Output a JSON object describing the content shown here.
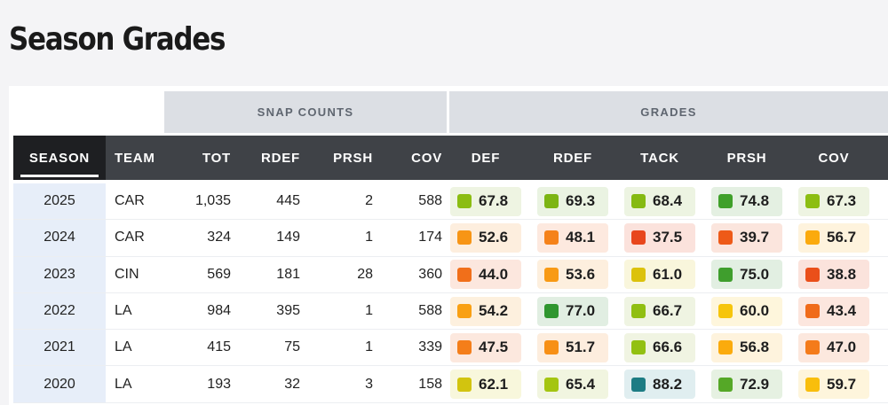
{
  "title": "Season Grades",
  "groups": {
    "snap_counts": "SNAP COUNTS",
    "grades": "GRADES"
  },
  "columns": {
    "season": "SEASON",
    "team": "TEAM",
    "tot": "TOT",
    "rdef": "RDEF",
    "prsh": "PRSH",
    "cov": "COV",
    "g_def": "DEF",
    "g_rdef": "RDEF",
    "g_tack": "TACK",
    "g_prsh": "PRSH",
    "g_cov": "COV"
  },
  "rows": [
    {
      "season": "2025",
      "team": "CAR",
      "tot": "1,035",
      "rdef": "445",
      "prsh": "2",
      "cov": "588",
      "grades": [
        {
          "value": "67.8",
          "color": "#8bbd12",
          "bg": "#eef4e2"
        },
        {
          "value": "69.3",
          "color": "#7cb514",
          "bg": "#eaf3e2"
        },
        {
          "value": "68.4",
          "color": "#85ba12",
          "bg": "#edf4e2"
        },
        {
          "value": "74.8",
          "color": "#3fa02a",
          "bg": "#e4f0e2"
        },
        {
          "value": "67.3",
          "color": "#8cbe12",
          "bg": "#eef4e2"
        }
      ]
    },
    {
      "season": "2024",
      "team": "CAR",
      "tot": "324",
      "rdef": "149",
      "prsh": "1",
      "cov": "174",
      "grades": [
        {
          "value": "52.6",
          "color": "#f79515",
          "bg": "#fdeede"
        },
        {
          "value": "48.1",
          "color": "#f5821a",
          "bg": "#fde9df"
        },
        {
          "value": "37.5",
          "color": "#e8461c",
          "bg": "#fbe2dc"
        },
        {
          "value": "39.7",
          "color": "#ee5a18",
          "bg": "#fbe5dd"
        },
        {
          "value": "56.7",
          "color": "#fbaa0d",
          "bg": "#fef3dd"
        }
      ]
    },
    {
      "season": "2023",
      "team": "CIN",
      "tot": "569",
      "rdef": "181",
      "prsh": "28",
      "cov": "360",
      "grades": [
        {
          "value": "44.0",
          "color": "#f16f1a",
          "bg": "#fce7de"
        },
        {
          "value": "53.6",
          "color": "#f89a14",
          "bg": "#fdefde"
        },
        {
          "value": "61.0",
          "color": "#dcc20c",
          "bg": "#f9f6dc"
        },
        {
          "value": "75.0",
          "color": "#3f9e2d",
          "bg": "#e2efe2"
        },
        {
          "value": "38.8",
          "color": "#ea4f1a",
          "bg": "#fbe3dc"
        }
      ]
    },
    {
      "season": "2022",
      "team": "LA",
      "tot": "984",
      "rdef": "395",
      "prsh": "1",
      "cov": "588",
      "grades": [
        {
          "value": "54.2",
          "color": "#f9a013",
          "bg": "#fdf0de"
        },
        {
          "value": "77.0",
          "color": "#2f962f",
          "bg": "#e1eee2"
        },
        {
          "value": "66.7",
          "color": "#90bf12",
          "bg": "#eff4e2"
        },
        {
          "value": "60.0",
          "color": "#f6c50c",
          "bg": "#fef6dc"
        },
        {
          "value": "43.4",
          "color": "#f06b1a",
          "bg": "#fce6de"
        }
      ]
    },
    {
      "season": "2021",
      "team": "LA",
      "tot": "415",
      "rdef": "75",
      "prsh": "1",
      "cov": "339",
      "grades": [
        {
          "value": "47.5",
          "color": "#f47e1a",
          "bg": "#fce8de"
        },
        {
          "value": "51.7",
          "color": "#f79016",
          "bg": "#fdedde"
        },
        {
          "value": "66.6",
          "color": "#92c012",
          "bg": "#f0f4e2"
        },
        {
          "value": "56.8",
          "color": "#fbab0d",
          "bg": "#fef3dd"
        },
        {
          "value": "47.0",
          "color": "#f47b1a",
          "bg": "#fce8de"
        }
      ]
    },
    {
      "season": "2020",
      "team": "LA",
      "tot": "193",
      "rdef": "32",
      "prsh": "3",
      "cov": "158",
      "grades": [
        {
          "value": "62.1",
          "color": "#d2c40f",
          "bg": "#f8f7dc"
        },
        {
          "value": "65.4",
          "color": "#a4c511",
          "bg": "#f1f5e0"
        },
        {
          "value": "88.2",
          "color": "#1d7c84",
          "bg": "#e0eef0"
        },
        {
          "value": "72.9",
          "color": "#55a827",
          "bg": "#e6f1e2"
        },
        {
          "value": "59.7",
          "color": "#f9be0c",
          "bg": "#fef5dc"
        }
      ]
    }
  ]
}
